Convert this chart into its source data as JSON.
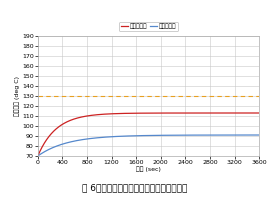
{
  "title": "囶 6　部品の平均温度（調整した設計案）",
  "xlabel": "経過 (sec)",
  "ylabel": "平均温度 (deg C)",
  "xlim": [
    0,
    3600
  ],
  "ylim": [
    70,
    190
  ],
  "yticks": [
    70,
    80,
    90,
    100,
    110,
    120,
    130,
    140,
    150,
    160,
    170,
    180,
    190
  ],
  "xticks": [
    0,
    400,
    800,
    1200,
    1600,
    2000,
    2400,
    2800,
    3200,
    3600
  ],
  "legend_entries": [
    "閉路コイル",
    "電子コイル"
  ],
  "red_curve_asymptote": 113,
  "red_curve_start": 70,
  "red_curve_tau": 300,
  "blue_curve_asymptote": 91,
  "blue_curve_start": 70,
  "blue_curve_tau": 480,
  "dashed_line_y": 130,
  "red_color": "#cc2222",
  "blue_color": "#5588cc",
  "dashed_color": "#e8a020",
  "plot_bg_color": "#ffffff",
  "fig_bg_color": "#ffffff",
  "grid_color": "#c8c8c8",
  "border_color": "#aaaaaa",
  "font_size": 4.5,
  "legend_font_size": 4.2,
  "title_font_size": 6.5
}
